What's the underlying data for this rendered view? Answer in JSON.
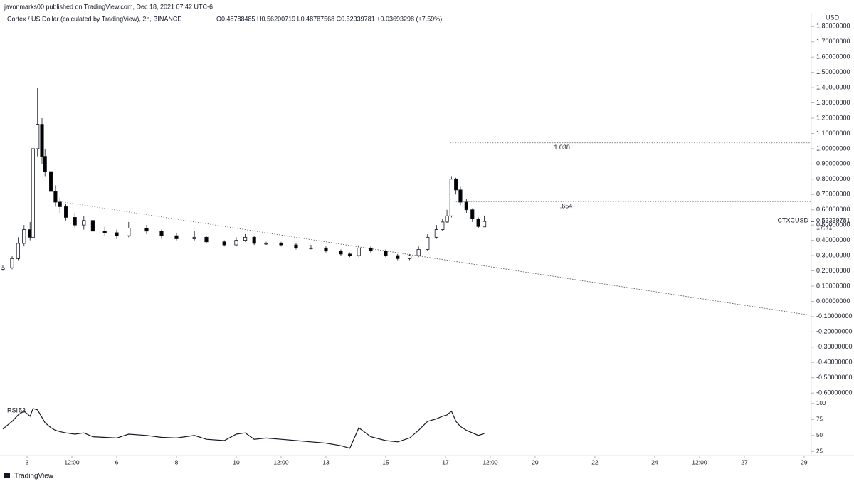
{
  "header": "javonmarks00 published on TradingView.com, Dec 18, 2021 07:42 UTC-6",
  "brand": "TradingView",
  "chart_data": {
    "type": "candlestick",
    "title": "Cortex / US Dollar (calculated by TradingView), 2h, BINANCE",
    "ohlc": "O0.48788485 H0.56200719 L0.48787568 C0.52339781 +0.03693298 (+7.59%)",
    "currency": "USD",
    "up_color": "#ffffff",
    "down_color": "#000000",
    "x": [
      2.19,
      2.5,
      2.7,
      2.9,
      3.1,
      3.2,
      3.35,
      3.5,
      3.6,
      3.8,
      3.95,
      4.1,
      4.3,
      4.6,
      4.9,
      5.2,
      5.6,
      6.0,
      6.4,
      7.0,
      7.5,
      8.0,
      8.6,
      9.0,
      9.6,
      10.0,
      10.3,
      10.6,
      11.0,
      11.5,
      12.0,
      12.5,
      13.0,
      13.5,
      13.8,
      14.1,
      14.5,
      15.0,
      15.4,
      15.8,
      16.1,
      16.4,
      16.7,
      16.9,
      17.05,
      17.2,
      17.35,
      17.5,
      17.7,
      17.9,
      18.1,
      18.3
    ],
    "open": [
      0.21,
      0.22,
      0.28,
      0.38,
      0.47,
      0.42,
      1.0,
      1.16,
      0.95,
      0.85,
      0.72,
      0.65,
      0.62,
      0.55,
      0.5,
      0.53,
      0.46,
      0.45,
      0.43,
      0.48,
      0.46,
      0.43,
      0.41,
      0.42,
      0.39,
      0.37,
      0.4,
      0.42,
      0.38,
      0.38,
      0.37,
      0.35,
      0.35,
      0.33,
      0.31,
      0.3,
      0.35,
      0.33,
      0.3,
      0.28,
      0.3,
      0.34,
      0.42,
      0.47,
      0.52,
      0.56,
      0.8,
      0.73,
      0.65,
      0.6,
      0.54,
      0.48788485
    ],
    "high": [
      0.24,
      0.3,
      0.42,
      0.5,
      0.52,
      1.3,
      1.4,
      1.2,
      1.0,
      0.9,
      0.76,
      0.68,
      0.64,
      0.58,
      0.56,
      0.54,
      0.49,
      0.47,
      0.52,
      0.5,
      0.47,
      0.45,
      0.46,
      0.43,
      0.4,
      0.42,
      0.44,
      0.43,
      0.39,
      0.39,
      0.38,
      0.37,
      0.36,
      0.34,
      0.32,
      0.37,
      0.36,
      0.34,
      0.31,
      0.31,
      0.36,
      0.44,
      0.5,
      0.54,
      0.6,
      0.82,
      0.81,
      0.75,
      0.67,
      0.61,
      0.55,
      0.56200719
    ],
    "low": [
      0.2,
      0.21,
      0.27,
      0.36,
      0.4,
      0.41,
      0.95,
      0.9,
      0.82,
      0.7,
      0.62,
      0.58,
      0.53,
      0.48,
      0.47,
      0.44,
      0.43,
      0.41,
      0.42,
      0.44,
      0.41,
      0.4,
      0.4,
      0.38,
      0.36,
      0.36,
      0.39,
      0.37,
      0.37,
      0.36,
      0.34,
      0.34,
      0.32,
      0.3,
      0.29,
      0.29,
      0.32,
      0.29,
      0.27,
      0.27,
      0.29,
      0.33,
      0.41,
      0.46,
      0.51,
      0.55,
      0.7,
      0.63,
      0.58,
      0.52,
      0.48,
      0.48787568
    ],
    "close": [
      0.22,
      0.28,
      0.38,
      0.47,
      0.42,
      1.0,
      1.16,
      0.95,
      0.85,
      0.72,
      0.65,
      0.62,
      0.55,
      0.5,
      0.53,
      0.46,
      0.45,
      0.43,
      0.48,
      0.46,
      0.43,
      0.41,
      0.42,
      0.39,
      0.37,
      0.4,
      0.42,
      0.38,
      0.38,
      0.37,
      0.35,
      0.35,
      0.33,
      0.31,
      0.3,
      0.35,
      0.33,
      0.3,
      0.28,
      0.3,
      0.34,
      0.42,
      0.47,
      0.52,
      0.56,
      0.8,
      0.73,
      0.65,
      0.6,
      0.54,
      0.49,
      0.52339781
    ],
    "xlim": [
      2.095,
      29.24
    ],
    "xticks": [
      3,
      {
        "value": 4.5,
        "label": "12:00"
      },
      6,
      8,
      10,
      {
        "value": 11.5,
        "label": "12:00"
      },
      13,
      15,
      17,
      {
        "value": 18.5,
        "label": "12:00"
      },
      20,
      22,
      24,
      {
        "value": 25.5,
        "label": "12:00"
      },
      27,
      29
    ],
    "ylim": [
      -0.66,
      1.89
    ],
    "yticks": [
      {
        "value": 1.8,
        "label": "1.80000000"
      },
      {
        "value": 1.7,
        "label": "1.70000000"
      },
      {
        "value": 1.6,
        "label": "1.60000000"
      },
      {
        "value": 1.5,
        "label": "1.50000000"
      },
      {
        "value": 1.4,
        "label": "1.40000000"
      },
      {
        "value": 1.3,
        "label": "1.30000000"
      },
      {
        "value": 1.2,
        "label": "1.20000000"
      },
      {
        "value": 1.1,
        "label": "1.10000000"
      },
      {
        "value": 1.0,
        "label": "1.00000000"
      },
      {
        "value": 0.9,
        "label": "0.90000000"
      },
      {
        "value": 0.8,
        "label": "0.80000000"
      },
      {
        "value": 0.7,
        "label": "0.70000000"
      },
      {
        "value": 0.6,
        "label": "0.60000000"
      },
      {
        "value": 0.5,
        "label": "0.50000000"
      },
      {
        "value": 0.4,
        "label": "0.40000000"
      },
      {
        "value": 0.3,
        "label": "0.30000000"
      },
      {
        "value": 0.2,
        "label": "0.20000000"
      },
      {
        "value": 0.1,
        "label": "0.10000000"
      },
      {
        "value": 0,
        "label": "0.00000000"
      },
      {
        "value": -0.1,
        "label": "-0.10000000"
      },
      {
        "value": -0.2,
        "label": "-0.20000000"
      },
      {
        "value": -0.3,
        "label": "-0.30000000"
      },
      {
        "value": -0.4,
        "label": "-0.40000000"
      },
      {
        "value": -0.5,
        "label": "-0.50000000"
      },
      {
        "value": -0.6,
        "label": "-0.60000000"
      }
    ],
    "symbol": "CTXCUSD",
    "last_price": 0.52339781,
    "countdown": "17:41",
    "trendline": {
      "x": [
        4.1,
        29.24
      ],
      "y": [
        0.654,
        -0.092
      ]
    },
    "levels": [
      {
        "value": 1.038,
        "label": "1.038",
        "from": 17.15
      },
      {
        "value": 0.654,
        "label": ".654",
        "from": 17.35
      }
    ],
    "rsi": {
      "name": "RSI",
      "last": 53,
      "values": [
        60,
        72,
        82,
        88,
        80,
        92,
        90,
        78,
        70,
        62,
        58,
        56,
        54,
        52,
        54,
        48,
        47,
        46,
        52,
        50,
        47,
        46,
        50,
        44,
        42,
        52,
        54,
        44,
        46,
        44,
        42,
        40,
        38,
        34,
        30,
        62,
        48,
        42,
        40,
        46,
        58,
        72,
        76,
        80,
        82,
        88,
        72,
        64,
        58,
        54,
        50,
        53
      ],
      "ylim": [
        22,
        102
      ],
      "yticks": [
        100,
        75,
        50,
        25
      ]
    }
  }
}
